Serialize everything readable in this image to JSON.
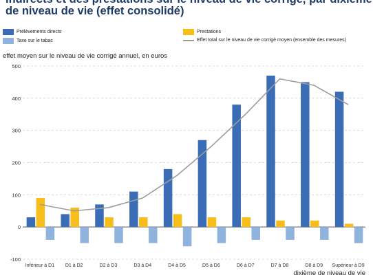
{
  "chart_data": {
    "type": "bar",
    "title_line1": "indirects et des prestations sur le niveau de vie corrigé, par dixième",
    "title_line2": "de niveau de vie (effet consolidé)",
    "ylabel": "effet moyen sur le niveau de vie corrigé annuel, en euros",
    "xlabel": "dixième de niveau de vie",
    "ylim": [
      -100,
      500
    ],
    "yticks": [
      "500",
      "400",
      "300",
      "200",
      "100",
      "0",
      "-100"
    ],
    "ytick_values": [
      500,
      400,
      300,
      200,
      100,
      0,
      -100
    ],
    "grid": true,
    "legend_position": "top",
    "categories": [
      "Inférieur à D1",
      "D1 à D2",
      "D2 à D3",
      "D3 à D4",
      "D4 à D5",
      "D5 à D6",
      "D6 à D7",
      "D7 à D8",
      "D8 à D9",
      "Supérieur à D9"
    ],
    "series": [
      {
        "name": "Prélèvements directs",
        "type": "bar",
        "color": "#3a6db5",
        "values": [
          30,
          40,
          70,
          110,
          180,
          270,
          380,
          470,
          450,
          420
        ]
      },
      {
        "name": "Prestations",
        "type": "bar",
        "color": "#f7bd1b",
        "values": [
          90,
          60,
          30,
          30,
          40,
          30,
          30,
          20,
          20,
          10
        ]
      },
      {
        "name": "Taxe sur le tabac",
        "type": "bar",
        "color": "#8fb3dc",
        "values": [
          -40,
          -50,
          -50,
          -50,
          -60,
          -50,
          -40,
          -40,
          -40,
          -50
        ]
      },
      {
        "name": "Effet total sur le niveau de vie corrigé moyen (ensemble des mesures)",
        "type": "line",
        "color": "#9c9c9c",
        "values": [
          70,
          50,
          60,
          90,
          160,
          250,
          350,
          460,
          440,
          380
        ]
      }
    ]
  }
}
